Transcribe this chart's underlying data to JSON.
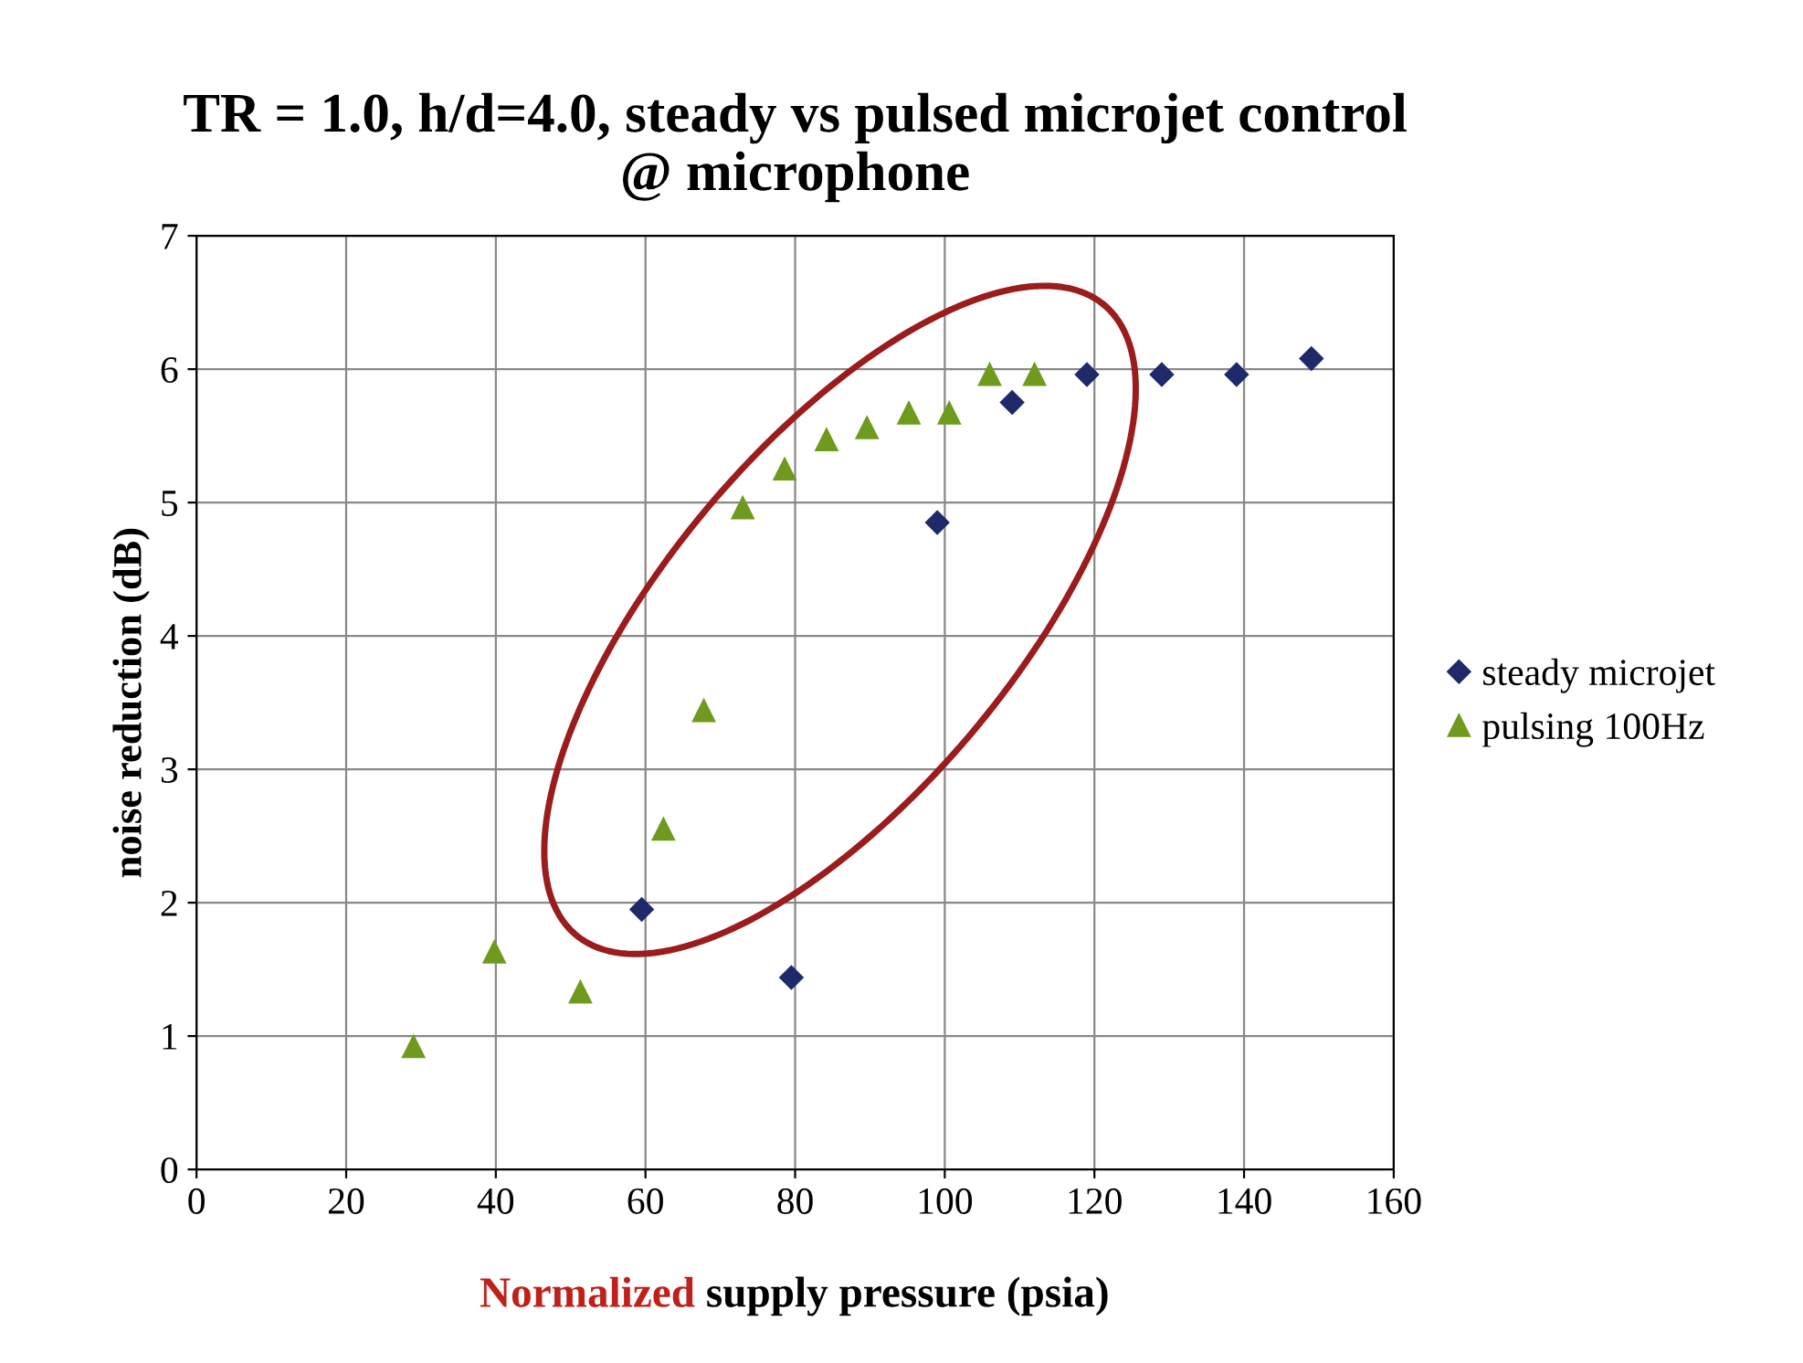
{
  "chart_data": {
    "type": "scatter",
    "title": "TR = 1.0, h/d=4.0, steady vs pulsed microjet control\n@ microphone",
    "xlabel": "Normalized supply pressure (psia)",
    "ylabel": "noise reduction (dB)",
    "xlim": [
      0,
      160
    ],
    "xticks": [
      0,
      20,
      40,
      60,
      80,
      100,
      120,
      140,
      160
    ],
    "ylim": [
      0,
      7
    ],
    "yticks": [
      0,
      1,
      2,
      3,
      4,
      5,
      6,
      7
    ],
    "grid": true,
    "legend": "right",
    "series": [
      {
        "name": "steady microjet",
        "color": "#1f2a6b",
        "marker": "diamond",
        "x": [
          59.5,
          79.5,
          99,
          109,
          119,
          129,
          139,
          149
        ],
        "values": [
          1.95,
          1.44,
          4.85,
          5.75,
          5.96,
          5.96,
          5.96,
          6.08
        ]
      },
      {
        "name": "pulsing 100Hz",
        "color": "#6e9a1e",
        "marker": "triangle",
        "x": [
          29,
          39.8,
          51.3,
          62.4,
          67.8,
          73,
          78.6,
          84.2,
          89.6,
          95.2,
          100.6,
          106,
          112
        ],
        "values": [
          0.92,
          1.63,
          1.33,
          2.55,
          3.44,
          4.96,
          5.25,
          5.47,
          5.56,
          5.67,
          5.67,
          5.96,
          5.96
        ]
      }
    ]
  }
}
